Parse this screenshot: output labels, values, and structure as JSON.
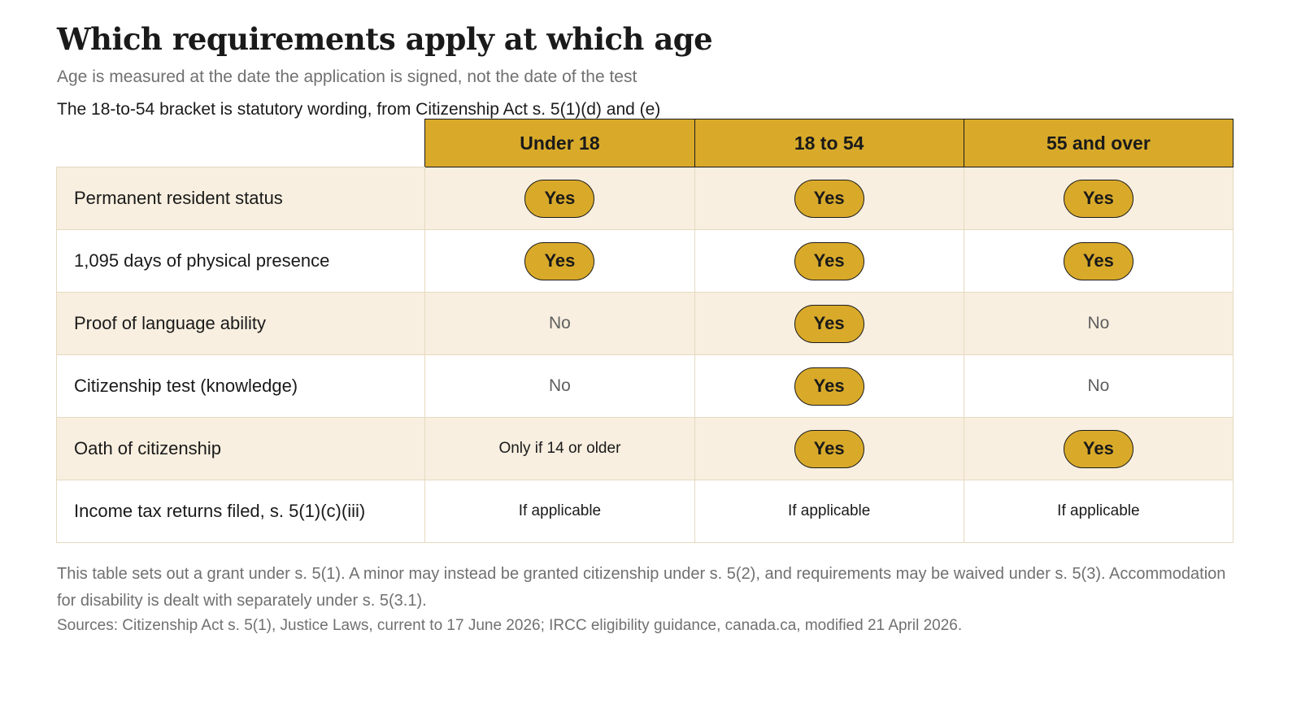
{
  "title": "Which requirements apply at which age",
  "subtitle": "Age is measured at the date the application is signed, not the date of the test",
  "note": "The 18-to-54 bracket is statutory wording, from Citizenship Act s. 5(1)(d) and (e)",
  "table": {
    "columns": [
      "Under 18",
      "18 to 54",
      "55 and over"
    ],
    "rows": [
      {
        "label": "Permanent resident status",
        "cells": [
          {
            "type": "pill",
            "text": "Yes"
          },
          {
            "type": "pill",
            "text": "Yes"
          },
          {
            "type": "pill",
            "text": "Yes"
          }
        ]
      },
      {
        "label": "1,095 days of physical presence",
        "cells": [
          {
            "type": "pill",
            "text": "Yes"
          },
          {
            "type": "pill",
            "text": "Yes"
          },
          {
            "type": "pill",
            "text": "Yes"
          }
        ]
      },
      {
        "label": "Proof of language ability",
        "cells": [
          {
            "type": "no",
            "text": "No"
          },
          {
            "type": "pill",
            "text": "Yes"
          },
          {
            "type": "no",
            "text": "No"
          }
        ]
      },
      {
        "label": "Citizenship test (knowledge)",
        "cells": [
          {
            "type": "no",
            "text": "No"
          },
          {
            "type": "pill",
            "text": "Yes"
          },
          {
            "type": "no",
            "text": "No"
          }
        ]
      },
      {
        "label": "Oath of citizenship",
        "cells": [
          {
            "type": "text",
            "text": "Only if 14 or older"
          },
          {
            "type": "pill",
            "text": "Yes"
          },
          {
            "type": "pill",
            "text": "Yes"
          }
        ]
      },
      {
        "label": "Income tax returns filed, s. 5(1)(c)(iii)",
        "cells": [
          {
            "type": "text",
            "text": "If applicable"
          },
          {
            "type": "text",
            "text": "If applicable"
          },
          {
            "type": "text",
            "text": "If applicable"
          }
        ]
      }
    ]
  },
  "footnote": "This table sets out a grant under s. 5(1). A minor may instead be granted citizenship under s. 5(2), and requirements may be waived under s. 5(3). Accommodation for disability is dealt with separately under s. 5(3.1).",
  "sources": "Sources: Citizenship Act s. 5(1), Justice Laws, current to 17 June 2026; IRCC eligibility guidance, canada.ca, modified 21 April 2026.",
  "colors": {
    "accent": "#d9aa2a",
    "row_tint": "#f8efe0",
    "grid": "#e6d9bf",
    "muted": "#707070"
  }
}
